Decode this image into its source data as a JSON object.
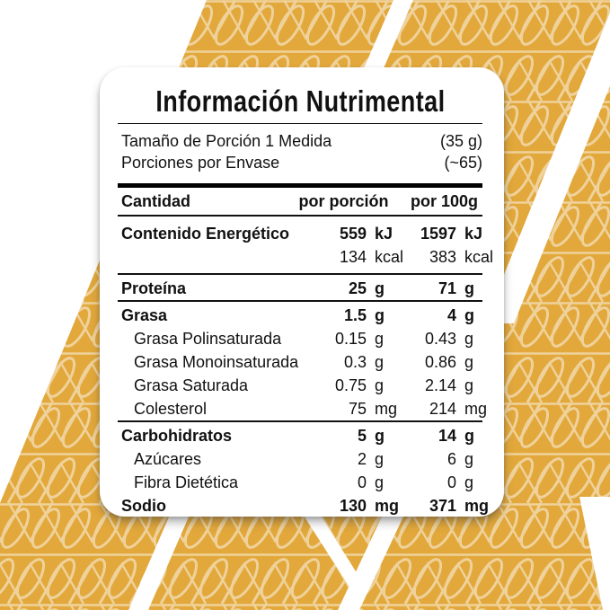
{
  "colors": {
    "gold": "#E2A83B",
    "pattern_line": "#EFD29B",
    "stripe": "#FFFFFF",
    "text": "#111111"
  },
  "card": {
    "title": "Información Nutrimental",
    "serving_rows": [
      {
        "label": "Tamaño de Porción 1 Medida",
        "value": "(35 g)"
      },
      {
        "label": "Porciones por Envase",
        "value": "(~65)"
      }
    ],
    "header": {
      "amount": "Cantidad",
      "per_portion": "por porción",
      "per_100g": "por 100g"
    }
  },
  "table": {
    "rows": [
      {
        "label": "Contenido Energético",
        "bold": true,
        "energy_top": true,
        "per_portion": "559",
        "unit1": "kJ",
        "per_100g": "1597",
        "unit2": "kJ"
      },
      {
        "label": "",
        "energy_cont": true,
        "per_portion": "134",
        "unit1": "kcal",
        "per_100g": "383",
        "unit2": "kcal"
      },
      {
        "label": "Proteína",
        "bold": true,
        "sep": true,
        "per_portion": "25",
        "unit1": "g",
        "per_100g": "71",
        "unit2": "g"
      },
      {
        "label": "Grasa",
        "bold": true,
        "sep": true,
        "per_portion": "1.5",
        "unit1": "g",
        "per_100g": "4",
        "unit2": "g"
      },
      {
        "label": "Grasa Polinsaturada",
        "indent": true,
        "per_portion": "0.15",
        "unit1": "g",
        "per_100g": "0.43",
        "unit2": "g"
      },
      {
        "label": "Grasa Monoinsaturada",
        "indent": true,
        "per_portion": "0.3",
        "unit1": "g",
        "per_100g": "0.86",
        "unit2": "g"
      },
      {
        "label": "Grasa Saturada",
        "indent": true,
        "per_portion": "0.75",
        "unit1": "g",
        "per_100g": "2.14",
        "unit2": "g"
      },
      {
        "label": "Colesterol",
        "indent": true,
        "per_portion": "75",
        "unit1": "mg",
        "per_100g": "214",
        "unit2": "mg"
      },
      {
        "label": "Carbohidratos",
        "bold": true,
        "sep": true,
        "per_portion": "5",
        "unit1": "g",
        "per_100g": "14",
        "unit2": "g"
      },
      {
        "label": "Azúcares",
        "indent": true,
        "per_portion": "2",
        "unit1": "g",
        "per_100g": "6",
        "unit2": "g"
      },
      {
        "label": "Fibra Dietética",
        "indent": true,
        "per_portion": "0",
        "unit1": "g",
        "per_100g": "0",
        "unit2": "g"
      },
      {
        "label": "Sodio",
        "bold": true,
        "per_portion": "130",
        "unit1": "mg",
        "per_100g": "371",
        "unit2": "mg"
      }
    ]
  }
}
